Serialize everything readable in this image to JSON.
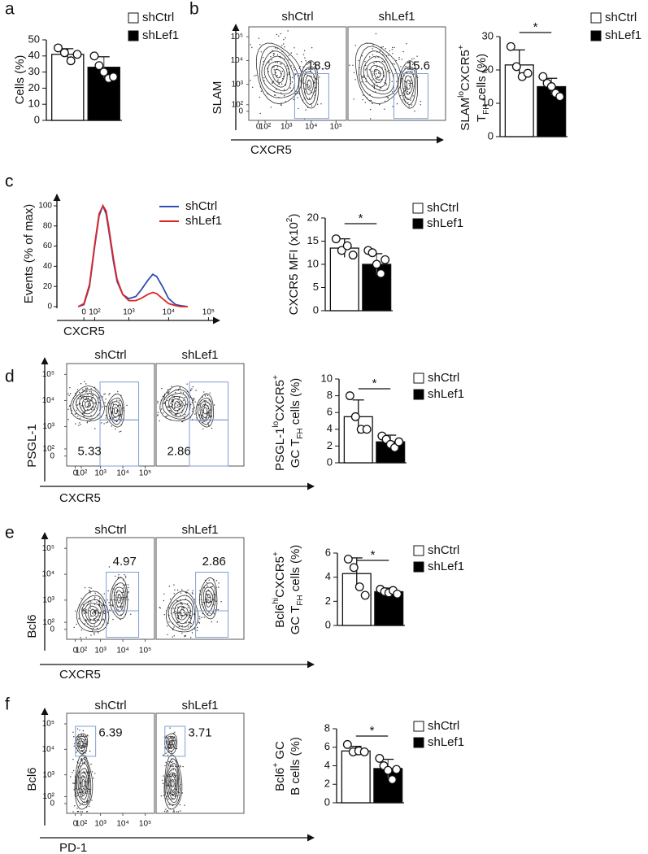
{
  "panel_labels": [
    "a",
    "b",
    "c",
    "d",
    "e",
    "f"
  ],
  "chart_data": [
    {
      "type": "bar",
      "ylabel": [
        [
          {
            "text": "Cells (%)"
          }
        ]
      ],
      "ylim": [
        0,
        50
      ],
      "yticks": [
        0,
        10,
        20,
        30,
        40,
        50
      ],
      "series": [
        {
          "name": "shCtrl",
          "color": "#ffffff",
          "value": 41,
          "error": 3.5,
          "points": [
            45,
            42,
            37,
            41
          ]
        },
        {
          "name": "shLef1",
          "color": "#000000",
          "value": 33,
          "error": 6.5,
          "points": [
            40,
            34,
            30,
            26,
            27
          ]
        }
      ]
    },
    {
      "type": "bar",
      "ylabel": [
        [
          {
            "text": "SLAM"
          },
          {
            "text": "lo",
            "pos": "sup"
          },
          {
            "text": "CXCR5"
          },
          {
            "text": "+",
            "pos": "sup"
          }
        ],
        [
          {
            "text": "T"
          },
          {
            "text": "FH",
            "pos": "sub"
          },
          {
            "text": " cells (%)"
          }
        ]
      ],
      "ylim": [
        0,
        30
      ],
      "yticks": [
        0,
        10,
        20,
        30
      ],
      "significance": "*",
      "series": [
        {
          "name": "shCtrl",
          "color": "#ffffff",
          "value": 21.5,
          "error": 4.5,
          "points": [
            27,
            21,
            18,
            19
          ]
        },
        {
          "name": "shLef1",
          "color": "#000000",
          "value": 15,
          "error": 2.5,
          "points": [
            18,
            16,
            15,
            13,
            12
          ]
        }
      ]
    },
    {
      "type": "line",
      "xlabel": "CXCR5",
      "ylabel": "Events (% of max)",
      "xscale": "biexponential",
      "xlim": [
        -340,
        130000
      ],
      "ylim": [
        0,
        100
      ],
      "xticks": [
        0,
        {
          "value": 100,
          "label": "10²"
        },
        {
          "value": 1000,
          "label": "10³"
        },
        {
          "value": 10000,
          "label": "10⁴"
        },
        {
          "value": 100000,
          "label": "10⁵"
        }
      ],
      "yticks": [
        0,
        20,
        40,
        60,
        80,
        100
      ],
      "x": [
        -50,
        0,
        50,
        100,
        150,
        200,
        250,
        300,
        400,
        500,
        700,
        1000,
        1500,
        2000,
        3000,
        4000,
        5000,
        7000,
        10000,
        15000,
        20000,
        30000
      ],
      "series": [
        {
          "name": "shCtrl",
          "color": "#2f4fb0",
          "values": [
            0,
            2,
            20,
            60,
            90,
            100,
            92,
            75,
            45,
            25,
            12,
            8,
            10,
            16,
            26,
            32,
            30,
            20,
            8,
            2,
            1,
            0
          ]
        },
        {
          "name": "shLef1",
          "color": "#e02424",
          "values": [
            0,
            3,
            22,
            62,
            92,
            100,
            95,
            78,
            48,
            27,
            12,
            6,
            6,
            8,
            12,
            14,
            13,
            8,
            3,
            1,
            0,
            0
          ]
        }
      ]
    },
    {
      "type": "bar",
      "ylabel": [
        [
          {
            "text": "CXCR5 MFI (x10"
          },
          {
            "text": "2",
            "pos": "sup"
          },
          {
            "text": ")"
          }
        ]
      ],
      "ylim": [
        0,
        20
      ],
      "yticks": [
        0,
        5,
        10,
        15,
        20
      ],
      "significance": "*",
      "series": [
        {
          "name": "shCtrl",
          "color": "#ffffff",
          "value": 13.5,
          "error": 2,
          "points": [
            15.5,
            13,
            14,
            12
          ]
        },
        {
          "name": "shLef1",
          "color": "#000000",
          "value": 10,
          "error": 2.3,
          "points": [
            13,
            12.5,
            10,
            8,
            11
          ]
        }
      ]
    },
    {
      "type": "bar",
      "ylabel": [
        [
          {
            "text": "PSGL-1"
          },
          {
            "text": "lo",
            "pos": "sup"
          },
          {
            "text": "CXCR5"
          },
          {
            "text": "+",
            "pos": "sup"
          }
        ],
        [
          {
            "text": "GC T"
          },
          {
            "text": "FH",
            "pos": "sub"
          },
          {
            "text": " cells (%)"
          }
        ]
      ],
      "ylim": [
        0,
        10
      ],
      "yticks": [
        0,
        2,
        4,
        6,
        8,
        10
      ],
      "significance": "*",
      "series": [
        {
          "name": "shCtrl",
          "color": "#ffffff",
          "value": 5.5,
          "error": 2,
          "points": [
            8,
            5.5,
            4,
            4
          ]
        },
        {
          "name": "shLef1",
          "color": "#000000",
          "value": 2.5,
          "error": 0.8,
          "points": [
            3.2,
            2.8,
            2.2,
            1.8,
            2.5
          ]
        }
      ]
    },
    {
      "type": "bar",
      "ylabel": [
        [
          {
            "text": "Bcl6"
          },
          {
            "text": "hi",
            "pos": "sup"
          },
          {
            "text": "CXCR5"
          },
          {
            "text": "+",
            "pos": "sup"
          }
        ],
        [
          {
            "text": "GC T"
          },
          {
            "text": "FH",
            "pos": "sub"
          },
          {
            "text": " cells (%)"
          }
        ]
      ],
      "ylim": [
        0,
        6
      ],
      "yticks": [
        0,
        2,
        4,
        6
      ],
      "significance": "*",
      "series": [
        {
          "name": "shCtrl",
          "color": "#ffffff",
          "value": 4.3,
          "error": 1.3,
          "points": [
            5.5,
            4.8,
            3.2,
            2.5
          ]
        },
        {
          "name": "shLef1",
          "color": "#000000",
          "value": 2.8,
          "error": 0.3,
          "points": [
            3,
            2.8,
            2.7,
            2.9,
            2.6
          ]
        }
      ]
    },
    {
      "type": "bar",
      "ylabel": [
        [
          {
            "text": "Bcl6"
          },
          {
            "text": "+",
            "pos": "sup"
          },
          {
            "text": " GC"
          }
        ],
        [
          {
            "text": "B cells (%)"
          }
        ]
      ],
      "ylim": [
        0,
        8
      ],
      "yticks": [
        0,
        2,
        4,
        6,
        8
      ],
      "significance": "*",
      "series": [
        {
          "name": "shCtrl",
          "color": "#ffffff",
          "value": 5.6,
          "error": 0.5,
          "points": [
            6.3,
            5.5,
            5.6,
            5.5
          ]
        },
        {
          "name": "shLef1",
          "color": "#000000",
          "value": 3.7,
          "error": 1,
          "points": [
            4.8,
            4,
            3.5,
            2.5,
            3.6
          ]
        }
      ]
    }
  ],
  "flow_panels": [
    {
      "ylabel": "SLAM",
      "xlabel": "CXCR5",
      "xlim": [
        -150,
        260000
      ],
      "ylim": [
        -150,
        260000
      ],
      "xticks": [
        0,
        {
          "value": 100,
          "label": "10²"
        },
        {
          "value": 1000,
          "label": "10³"
        },
        {
          "value": 10000,
          "label": "10⁴"
        },
        {
          "value": 100000,
          "label": "10⁵"
        }
      ],
      "yticks": [
        0,
        {
          "value": 100,
          "label": "10²"
        },
        {
          "value": 1000,
          "label": "10³"
        },
        {
          "value": 10000,
          "label": "10⁴"
        },
        {
          "value": 100000,
          "label": "10⁵"
        }
      ],
      "plots": [
        {
          "title": "shCtrl",
          "gates": [
            18.9
          ]
        },
        {
          "title": "shLef1",
          "gates": [
            15.6
          ]
        }
      ]
    },
    {
      "ylabel": "PSGL-1",
      "xlabel": "CXCR5",
      "xlim": [
        -150,
        260000
      ],
      "ylim": [
        -150,
        260000
      ],
      "xticks": [
        0,
        {
          "value": 100,
          "label": "10²"
        },
        {
          "value": 1000,
          "label": "10³"
        },
        {
          "value": 10000,
          "label": "10⁴"
        },
        {
          "value": 100000,
          "label": "10⁵"
        }
      ],
      "yticks": [
        0,
        {
          "value": 100,
          "label": "10²"
        },
        {
          "value": 1000,
          "label": "10³"
        },
        {
          "value": 10000,
          "label": "10⁴"
        },
        {
          "value": 100000,
          "label": "10⁵"
        }
      ],
      "plots": [
        {
          "title": "shCtrl",
          "gates": [
            5.33
          ]
        },
        {
          "title": "shLef1",
          "gates": [
            2.86
          ]
        }
      ]
    },
    {
      "ylabel": "Bcl6",
      "xlabel": "CXCR5",
      "xlim": [
        -150,
        260000
      ],
      "ylim": [
        -150,
        260000
      ],
      "xticks": [
        0,
        {
          "value": 100,
          "label": "10²"
        },
        {
          "value": 1000,
          "label": "10³"
        },
        {
          "value": 10000,
          "label": "10⁴"
        },
        {
          "value": 100000,
          "label": "10⁵"
        }
      ],
      "yticks": [
        0,
        {
          "value": 100,
          "label": "10²"
        },
        {
          "value": 1000,
          "label": "10³"
        },
        {
          "value": 10000,
          "label": "10⁴"
        },
        {
          "value": 100000,
          "label": "10⁵"
        }
      ],
      "plots": [
        {
          "title": "shCtrl",
          "gates": [
            4.97
          ]
        },
        {
          "title": "shLef1",
          "gates": [
            2.86
          ]
        }
      ]
    },
    {
      "ylabel": "Bcl6",
      "xlabel": "PD-1",
      "xlim": [
        -150,
        260000
      ],
      "ylim": [
        -150,
        260000
      ],
      "xticks": [
        0,
        {
          "value": 100,
          "label": "10²"
        },
        {
          "value": 1000,
          "label": "10³"
        },
        {
          "value": 10000,
          "label": "10⁴"
        },
        {
          "value": 100000,
          "label": "10⁵"
        }
      ],
      "yticks": [
        0,
        {
          "value": 100,
          "label": "10²"
        },
        {
          "value": 1000,
          "label": "10³"
        },
        {
          "value": 10000,
          "label": "10⁴"
        },
        {
          "value": 100000,
          "label": "10⁵"
        }
      ],
      "plots": [
        {
          "title": "shCtrl",
          "gates": [
            6.39
          ]
        },
        {
          "title": "shLef1",
          "gates": [
            3.71
          ]
        }
      ]
    }
  ]
}
